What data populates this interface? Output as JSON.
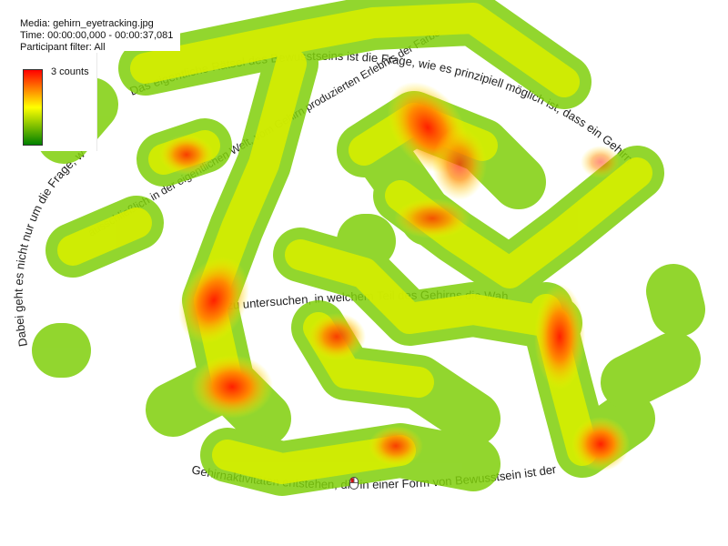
{
  "info": {
    "media": "Media: gehirn_eyetracking.jpg",
    "time": "Time: 00:00:00,000 - 00:00:37,081",
    "filter": "Participant filter: All"
  },
  "legend": {
    "label": "3 counts",
    "colors": [
      "#ff0000",
      "#ff8000",
      "#ffff00",
      "#80c000",
      "#008000"
    ]
  },
  "background_text": [
    "Das eigentliche Rätsel des Bewusstseins ist die Frage, wie es prinzipiell möglich ist, dass ein Gehirn",
    "Dabei geht es nicht nur um die Frage, wie unser Gehirn bewusste Erfahrungen erzeugt, sondern auch darum,",
    "zu untersuchen, in welchem Teil des Gehirns die Wahrnehmungen aus einer bestimmten Anordnung von",
    "Gehirnaktivitäten entstehen, die in einer Form von Bewusstsein ist der Geist des Gehirn produzierten Erlebnis",
    "ausschließlich in der eigentlichen Welt, vom Gehirn produzierten Erlebnis der Farbe"
  ],
  "icons": {
    "mouse": "mouse-cursor-icon"
  }
}
